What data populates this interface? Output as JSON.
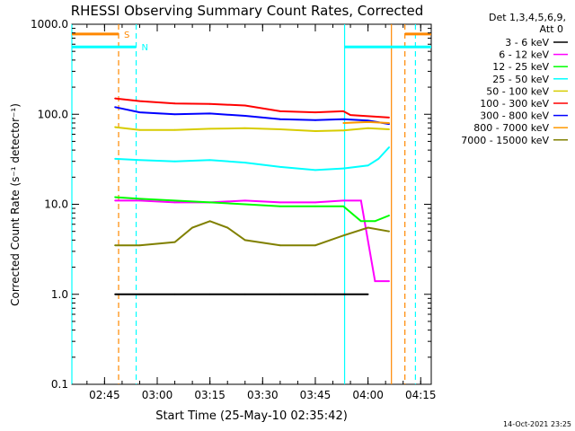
{
  "chart_data": {
    "type": "line",
    "title": "RHESSI Observing Summary Count Rates, Corrected",
    "xlabel": "Start Time (25-May-10 02:35:42)",
    "ylabel": "Corrected Count Rate (s⁻¹ detector⁻¹)",
    "y_scale": "log",
    "ylim": [
      0.1,
      1000
    ],
    "y_ticks": [
      "0.1",
      "1.0",
      "10.0",
      "100.0",
      "1000.0"
    ],
    "xlim": [
      "02:35:42",
      "04:18:00"
    ],
    "x_ticks": [
      "02:45",
      "03:00",
      "03:15",
      "03:30",
      "03:45",
      "04:00",
      "04:15"
    ],
    "legend_header": [
      "Det 1,3,4,5,6,9,",
      "Att 0"
    ],
    "legend_position": "right",
    "footer_date": "14-Oct-2021 23:25",
    "series": [
      {
        "name": "3 - 6 keV",
        "color": "#000000",
        "x": [
          "02:48:00",
          "02:55:00",
          "03:05:00",
          "03:15:00",
          "03:25:00",
          "03:35:00",
          "03:45:00",
          "03:53:00",
          "04:00:00"
        ],
        "y": [
          1.0,
          1.0,
          1.0,
          1.0,
          1.0,
          1.0,
          1.0,
          1.0,
          1.0
        ]
      },
      {
        "name": "6 - 12 keV",
        "color": "#ff00ff",
        "x": [
          "02:48:00",
          "02:55:00",
          "03:05:00",
          "03:15:00",
          "03:25:00",
          "03:35:00",
          "03:45:00",
          "03:53:00",
          "03:58:00",
          "04:02:00",
          "04:06:00"
        ],
        "y": [
          11,
          11,
          10.5,
          10.5,
          11,
          10.5,
          10.5,
          11,
          11,
          1.4,
          1.4
        ]
      },
      {
        "name": "12 - 25 keV",
        "color": "#00ff00",
        "x": [
          "02:48:00",
          "02:55:00",
          "03:05:00",
          "03:15:00",
          "03:25:00",
          "03:35:00",
          "03:45:00",
          "03:53:00",
          "03:58:00",
          "04:02:00",
          "04:06:00"
        ],
        "y": [
          12,
          11.5,
          11,
          10.5,
          10,
          9.5,
          9.5,
          9.5,
          6.5,
          6.5,
          7.5
        ]
      },
      {
        "name": "25 - 50 keV",
        "color": "#00ffff",
        "x": [
          "02:48:00",
          "02:55:00",
          "03:05:00",
          "03:15:00",
          "03:25:00",
          "03:35:00",
          "03:45:00",
          "03:53:00",
          "04:00:00",
          "04:03:00",
          "04:06:00"
        ],
        "y": [
          32,
          31,
          30,
          31,
          29,
          26,
          24,
          25,
          27,
          32,
          43
        ]
      },
      {
        "name": "50 - 100 keV",
        "color": "#d7cc00",
        "x": [
          "02:48:00",
          "02:55:00",
          "03:05:00",
          "03:15:00",
          "03:25:00",
          "03:35:00",
          "03:45:00",
          "03:53:00",
          "04:00:00",
          "04:06:00"
        ],
        "y": [
          72,
          67,
          67,
          69,
          70,
          68,
          65,
          66,
          70,
          68
        ]
      },
      {
        "name": "100 - 300 keV",
        "color": "#ff0000",
        "x": [
          "02:48:00",
          "02:55:00",
          "03:05:00",
          "03:15:00",
          "03:25:00",
          "03:35:00",
          "03:45:00",
          "03:53:00",
          "03:55:00",
          "04:06:00"
        ],
        "y": [
          150,
          140,
          132,
          130,
          125,
          108,
          105,
          108,
          98,
          92
        ]
      },
      {
        "name": "300 - 800 keV",
        "color": "#0000ff",
        "x": [
          "02:48:00",
          "02:55:00",
          "03:05:00",
          "03:15:00",
          "03:25:00",
          "03:35:00",
          "03:45:00",
          "03:53:00",
          "04:00:00",
          "04:06:00"
        ],
        "y": [
          120,
          105,
          100,
          102,
          96,
          88,
          86,
          88,
          85,
          78
        ]
      },
      {
        "name": "800 - 7000 keV",
        "color": "#ff9900",
        "x": [
          "03:53:00",
          "04:00:00",
          "04:06:00"
        ],
        "y": [
          80,
          82,
          80
        ]
      },
      {
        "name": "7000 - 15000 keV",
        "color": "#808000",
        "x": [
          "02:48:00",
          "02:55:00",
          "03:05:00",
          "03:10:00",
          "03:15:00",
          "03:20:00",
          "03:25:00",
          "03:35:00",
          "03:45:00",
          "03:53:00",
          "04:00:00",
          "04:06:00"
        ],
        "y": [
          3.5,
          3.5,
          3.8,
          5.5,
          6.5,
          5.5,
          4,
          3.5,
          3.5,
          4.5,
          5.5,
          5
        ]
      }
    ],
    "state_flags": [
      {
        "label": "S",
        "color": "#ff8800",
        "segments": [
          [
            "02:35:42",
            "02:49:00"
          ],
          [
            "04:10:30",
            "04:18:00"
          ]
        ],
        "level": 780
      },
      {
        "label": "N",
        "color": "#00ffff",
        "segments": [
          [
            "02:35:42",
            "02:54:00"
          ],
          [
            "03:53:20",
            "04:18:00"
          ]
        ],
        "level": 560
      }
    ],
    "vertical_markers": [
      {
        "time": "02:35:42",
        "color": "#00ffff",
        "style": "solid"
      },
      {
        "time": "02:49:00",
        "color": "#ff8800",
        "style": "dashed"
      },
      {
        "time": "02:54:00",
        "color": "#00ffff",
        "style": "dashed"
      },
      {
        "time": "03:53:20",
        "color": "#00ffff",
        "style": "solid"
      },
      {
        "time": "04:06:40",
        "color": "#ff8800",
        "style": "solid"
      },
      {
        "time": "04:10:30",
        "color": "#ff8800",
        "style": "dashed"
      },
      {
        "time": "04:13:30",
        "color": "#00ffff",
        "style": "dashed"
      }
    ]
  }
}
